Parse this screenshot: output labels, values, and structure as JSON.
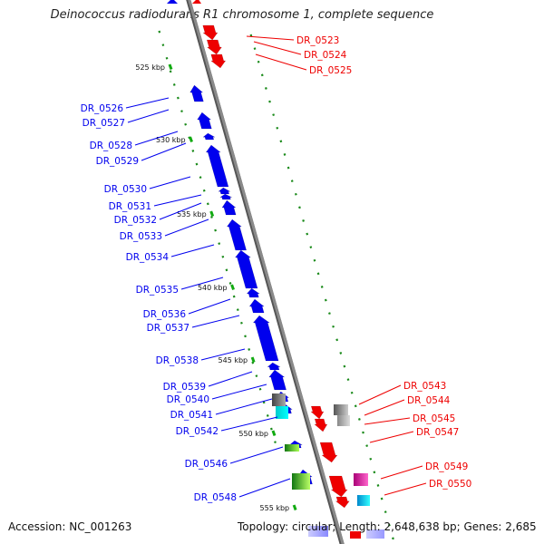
{
  "title": "Deinococcus radiodurans R1 chromosome 1, complete sequence",
  "footer": {
    "accession": "Accession: NC_001263",
    "topology": "Topology: circular; Length: 2,648,638 bp; Genes: 2,685"
  },
  "colors": {
    "backbone": "#8a8a8a",
    "forward_strand": "#ee0000",
    "reverse_strand": "#0000ee",
    "tick": "#1a8a1a",
    "kbp_marker": "#11aa11"
  },
  "scale_labels": [
    "525 kbp",
    "530 kbp",
    "535 kbp",
    "540 kbp",
    "545 kbp",
    "550 kbp",
    "555 kbp"
  ],
  "genes_left": [
    "DR_0526",
    "DR_0527",
    "DR_0528",
    "DR_0529",
    "DR_0530",
    "DR_0531",
    "DR_0532",
    "DR_0533",
    "DR_0534",
    "DR_0535",
    "DR_0536",
    "DR_0537",
    "DR_0538",
    "DR_0539",
    "DR_0540",
    "DR_0541",
    "DR_0542",
    "DR_0546",
    "DR_0548"
  ],
  "genes_right": [
    "DR_0523",
    "DR_0524",
    "DR_0525",
    "DR_0543",
    "DR_0544",
    "DR_0545",
    "DR_0547",
    "DR_0549",
    "DR_0550"
  ]
}
